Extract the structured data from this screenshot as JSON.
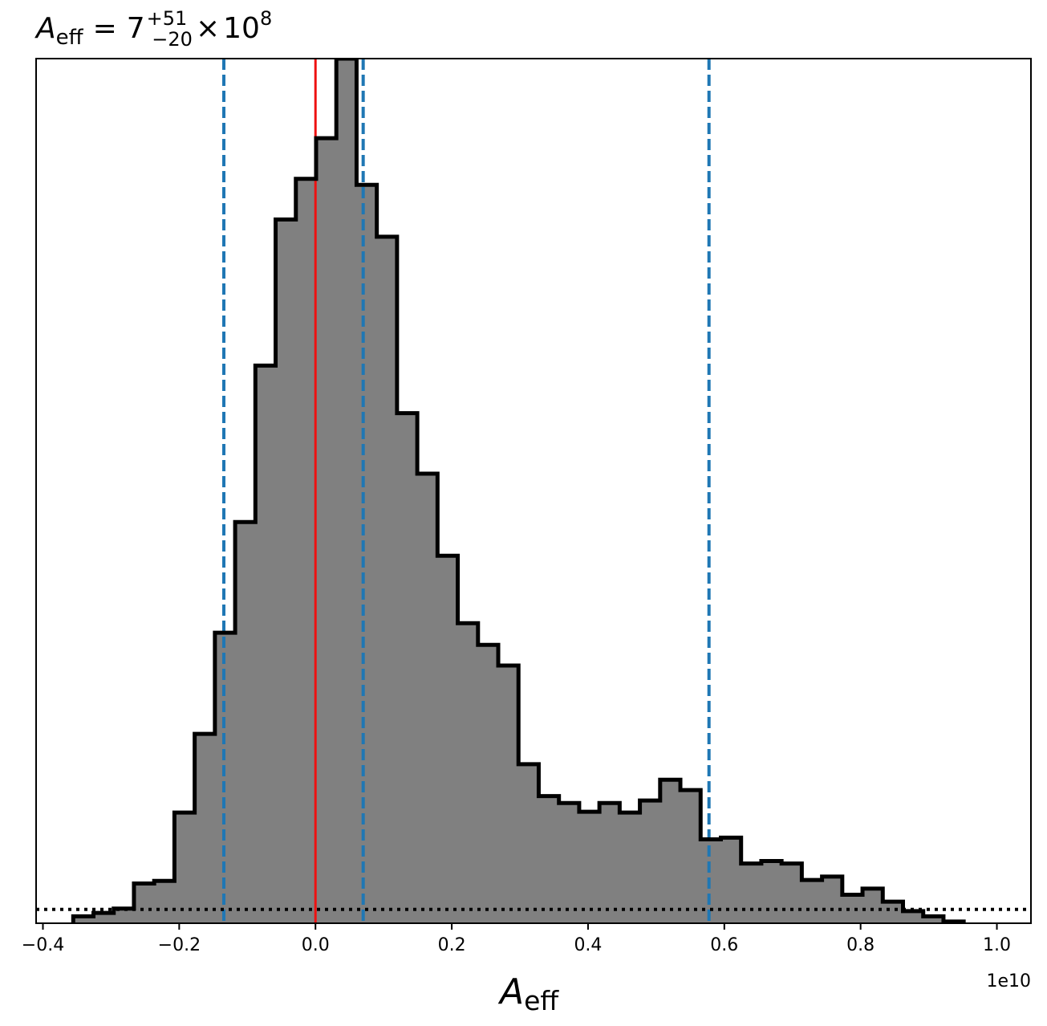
{
  "chart_data": {
    "type": "histogram",
    "title": {
      "symbol": "A",
      "subscript": "eff",
      "equals": "=",
      "mantissa": "7",
      "upper_err": "+51",
      "lower_err": "−20",
      "times": "×",
      "base": "10",
      "exponent": "8"
    },
    "xlabel": {
      "symbol": "A",
      "subscript": "eff"
    },
    "x_offset_label": "1e10",
    "ylabel": "",
    "xlim": [
      -0.41,
      1.05
    ],
    "ylim": [
      0,
      1.0
    ],
    "x_scale": "1e10",
    "xticks": [
      -0.4,
      -0.2,
      0.0,
      0.2,
      0.4,
      0.6,
      0.8,
      1.0
    ],
    "xtick_labels": [
      "−0.4",
      "−0.2",
      "0.0",
      "0.2",
      "0.4",
      "0.6",
      "0.8",
      "1.0"
    ],
    "y_ticks_shown": false,
    "grid": false,
    "bin_edges": [
      -0.3555,
      -0.3258,
      -0.2961,
      -0.2664,
      -0.2367,
      -0.207,
      -0.1773,
      -0.1476,
      -0.1179,
      -0.0882,
      -0.0585,
      -0.0288,
      0.0009,
      0.0306,
      0.0603,
      0.09,
      0.1197,
      0.1494,
      0.1791,
      0.2088,
      0.2385,
      0.2682,
      0.2979,
      0.3276,
      0.3573,
      0.387,
      0.4167,
      0.4464,
      0.4761,
      0.5058,
      0.5355,
      0.5652,
      0.5949,
      0.6246,
      0.6543,
      0.684,
      0.7137,
      0.7434,
      0.7731,
      0.8028,
      0.8325,
      0.8622,
      0.8919,
      0.9216,
      0.9513
    ],
    "counts": [
      0.008,
      0.012,
      0.017,
      0.046,
      0.049,
      0.128,
      0.219,
      0.336,
      0.464,
      0.645,
      0.814,
      0.861,
      0.908,
      1.0,
      0.854,
      0.794,
      0.59,
      0.52,
      0.425,
      0.347,
      0.322,
      0.298,
      0.184,
      0.147,
      0.139,
      0.129,
      0.139,
      0.128,
      0.142,
      0.166,
      0.154,
      0.097,
      0.099,
      0.069,
      0.072,
      0.069,
      0.05,
      0.054,
      0.033,
      0.04,
      0.025,
      0.014,
      0.008,
      0.002
    ],
    "hist_color": "#808080",
    "edge_color": "#000000",
    "vlines": [
      {
        "x": 0.0,
        "color": "#ee1111",
        "style": "solid"
      },
      {
        "x": -0.1345,
        "color": "#1f77b4",
        "style": "dashed"
      },
      {
        "x": 0.07,
        "color": "#1f77b4",
        "style": "dashed"
      },
      {
        "x": 0.5775,
        "color": "#1f77b4",
        "style": "dashed"
      }
    ],
    "hline": {
      "y": 0.016,
      "color": "#000000",
      "style": "dotted"
    }
  }
}
